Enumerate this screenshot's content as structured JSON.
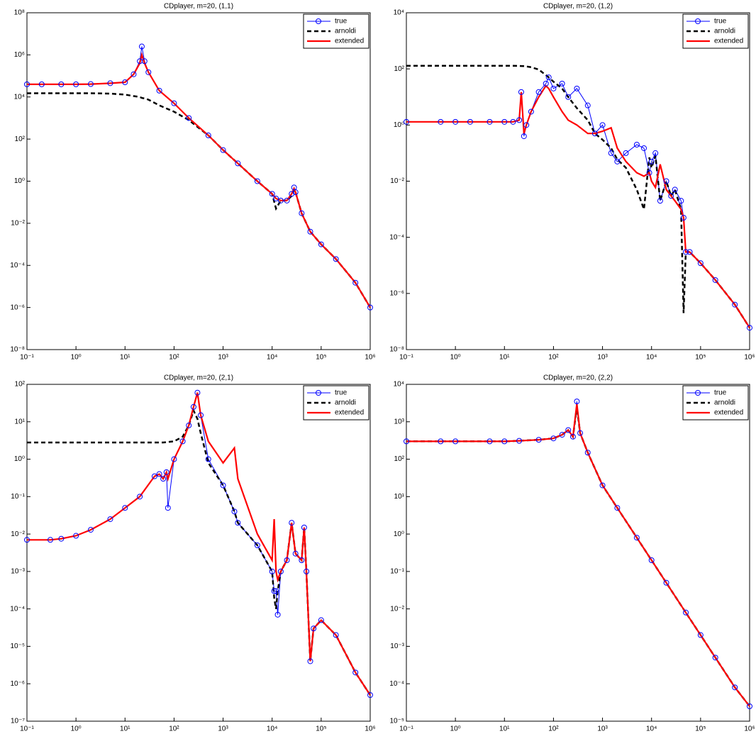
{
  "chart_data": [
    {
      "type": "line",
      "title": "CDplayer, m=20, (1,1)",
      "xscale": "log",
      "yscale": "log",
      "legend": "upper right",
      "x": [
        0.1,
        0.2,
        0.5,
        1,
        2,
        5,
        10,
        15,
        20,
        22,
        25,
        30,
        50,
        100,
        200,
        500,
        1000,
        2000,
        5000,
        10000,
        12000,
        15000,
        20000,
        25000,
        28000,
        30000,
        40000,
        60000,
        100000,
        200000,
        500000,
        1000000
      ],
      "series": [
        {
          "name": "true",
          "color": "#0000ff",
          "style": "solid",
          "marker": "circle",
          "values": [
            40000,
            40000,
            40000,
            40000,
            41000,
            45000,
            50000,
            120000,
            500000,
            2500000,
            500000,
            150000,
            20000,
            5000,
            1000,
            150,
            30,
            7,
            1,
            0.25,
            0.15,
            0.12,
            0.12,
            0.25,
            0.5,
            0.3,
            0.03,
            0.004,
            0.001,
            0.0002,
            1.5e-05,
            1e-06
          ]
        },
        {
          "name": "arnoldi",
          "color": "#000000",
          "style": "dashed",
          "marker": "none",
          "values": [
            15000,
            15000,
            15000,
            15000,
            15000,
            14500,
            13000,
            11000,
            10000,
            9000,
            8500,
            7500,
            4000,
            2000,
            800,
            150,
            30,
            7,
            1,
            0.25,
            0.05,
            0.12,
            0.12,
            0.2,
            0.4,
            0.3,
            0.03,
            0.004,
            0.001,
            0.0002,
            1.5e-05,
            1e-06
          ]
        },
        {
          "name": "extended",
          "color": "#ff0000",
          "style": "solid",
          "marker": "none",
          "values": [
            40000,
            40000,
            40000,
            40000,
            41000,
            45000,
            50000,
            120000,
            400000,
            1000000,
            400000,
            150000,
            20000,
            5000,
            1000,
            150,
            30,
            7,
            1,
            0.25,
            0.15,
            0.12,
            0.12,
            0.25,
            0.45,
            0.3,
            0.03,
            0.004,
            0.001,
            0.0002,
            1.5e-05,
            1e-06
          ]
        }
      ],
      "xlim": [
        0.1,
        1000000
      ],
      "ylim": [
        1e-08,
        100000000
      ],
      "xticks": [
        {
          "value": 0.1,
          "label": "10⁻¹"
        },
        {
          "value": 1,
          "label": "10⁰"
        },
        {
          "value": 10,
          "label": "10¹"
        },
        {
          "value": 100,
          "label": "10²"
        },
        {
          "value": 1000,
          "label": "10³"
        },
        {
          "value": 10000,
          "label": "10⁴"
        },
        {
          "value": 100000,
          "label": "10⁵"
        },
        {
          "value": 1000000,
          "label": "10⁶"
        }
      ],
      "yticks": [
        {
          "value": 1e-08,
          "label": "10⁻⁸"
        },
        {
          "value": 1e-06,
          "label": "10⁻⁶"
        },
        {
          "value": 0.0001,
          "label": "10⁻⁴"
        },
        {
          "value": 0.01,
          "label": "10⁻²"
        },
        {
          "value": 1,
          "label": "10⁰"
        },
        {
          "value": 100,
          "label": "10²"
        },
        {
          "value": 10000,
          "label": "10⁴"
        },
        {
          "value": 1000000,
          "label": "10⁶"
        },
        {
          "value": 100000000,
          "label": "10⁸"
        }
      ]
    },
    {
      "type": "line",
      "title": "CDplayer, m=20, (1,2)",
      "xscale": "log",
      "yscale": "log",
      "legend": "upper right",
      "x": [
        0.1,
        0.5,
        1,
        2,
        5,
        10,
        15,
        20,
        22,
        25,
        28,
        35,
        50,
        70,
        80,
        100,
        150,
        200,
        300,
        500,
        700,
        1000,
        1500,
        2000,
        3000,
        5000,
        7000,
        9000,
        10000,
        12000,
        15000,
        20000,
        25000,
        30000,
        40000,
        45000,
        50000,
        60000,
        100000,
        200000,
        500000,
        1000000
      ],
      "series": [
        {
          "name": "true",
          "color": "#0000ff",
          "style": "solid",
          "marker": "circle",
          "values": [
            1.3,
            1.3,
            1.3,
            1.3,
            1.3,
            1.3,
            1.3,
            1.5,
            15,
            0.4,
            1,
            3,
            15,
            30,
            50,
            20,
            30,
            10,
            20,
            5,
            0.5,
            1,
            0.1,
            0.05,
            0.1,
            0.2,
            0.15,
            0.02,
            0.05,
            0.1,
            0.002,
            0.01,
            0.003,
            0.005,
            0.002,
            0.0005,
            3e-05,
            3e-05,
            1.2e-05,
            3e-06,
            4e-07,
            6e-08
          ]
        },
        {
          "name": "arnoldi",
          "color": "#000000",
          "style": "dashed",
          "marker": "none",
          "values": [
            130,
            130,
            130,
            130,
            130,
            130,
            129,
            128,
            127,
            125,
            122,
            115,
            95,
            60,
            50,
            35,
            20,
            10,
            4,
            1.5,
            0.5,
            0.3,
            0.15,
            0.06,
            0.03,
            0.005,
            0.001,
            0.07,
            0.03,
            0.08,
            0.002,
            0.01,
            0.003,
            0.005,
            0.001,
            2e-07,
            3e-05,
            3e-05,
            1.2e-05,
            3e-06,
            4e-07,
            6e-08
          ]
        },
        {
          "name": "extended",
          "color": "#ff0000",
          "style": "solid",
          "marker": "none",
          "values": [
            1.3,
            1.3,
            1.3,
            1.3,
            1.3,
            1.3,
            1.3,
            1.5,
            15,
            0.5,
            1,
            3,
            10,
            25,
            20,
            10,
            3,
            1.5,
            1,
            0.5,
            0.5,
            0.6,
            0.8,
            0.15,
            0.05,
            0.02,
            0.015,
            0.02,
            0.01,
            0.006,
            0.04,
            0.005,
            0.003,
            0.002,
            0.001,
            0.0005,
            3e-05,
            3e-05,
            1.2e-05,
            3e-06,
            4e-07,
            6e-08
          ]
        }
      ],
      "xlim": [
        0.1,
        1000000
      ],
      "ylim": [
        1e-08,
        10000
      ],
      "xticks": [
        {
          "value": 0.1,
          "label": "10⁻¹"
        },
        {
          "value": 1,
          "label": "10⁰"
        },
        {
          "value": 10,
          "label": "10¹"
        },
        {
          "value": 100,
          "label": "10²"
        },
        {
          "value": 1000,
          "label": "10³"
        },
        {
          "value": 10000,
          "label": "10⁴"
        },
        {
          "value": 100000,
          "label": "10⁵"
        },
        {
          "value": 1000000,
          "label": "10⁶"
        }
      ],
      "yticks": [
        {
          "value": 1e-08,
          "label": "10⁻⁸"
        },
        {
          "value": 1e-06,
          "label": "10⁻⁶"
        },
        {
          "value": 0.0001,
          "label": "10⁻⁴"
        },
        {
          "value": 0.01,
          "label": "10⁻²"
        },
        {
          "value": 1,
          "label": "10⁰"
        },
        {
          "value": 100,
          "label": "10²"
        },
        {
          "value": 10000,
          "label": "10⁴"
        }
      ]
    },
    {
      "type": "line",
      "title": "CDplayer, m=20, (2,1)",
      "xscale": "log",
      "yscale": "log",
      "legend": "upper right",
      "x": [
        0.1,
        0.3,
        0.5,
        1,
        2,
        5,
        10,
        20,
        40,
        50,
        60,
        70,
        75,
        100,
        150,
        200,
        250,
        300,
        350,
        500,
        1000,
        1700,
        2000,
        5000,
        10000,
        11000,
        12000,
        13000,
        15000,
        20000,
        25000,
        30000,
        40000,
        45000,
        50000,
        60000,
        70000,
        100000,
        200000,
        500000,
        1000000
      ],
      "series": [
        {
          "name": "true",
          "color": "#0000ff",
          "style": "solid",
          "marker": "circle",
          "values": [
            0.007,
            0.007,
            0.0075,
            0.009,
            0.013,
            0.025,
            0.05,
            0.1,
            0.35,
            0.4,
            0.3,
            0.45,
            0.05,
            1,
            3,
            8,
            25,
            60,
            15,
            1,
            0.2,
            0.04,
            0.02,
            0.005,
            0.001,
            0.0003,
            0.0003,
            7e-05,
            0.001,
            0.002,
            0.02,
            0.003,
            0.002,
            0.015,
            0.001,
            4e-06,
            3e-05,
            5e-05,
            2e-05,
            2e-06,
            5e-07
          ]
        },
        {
          "name": "arnoldi",
          "color": "#000000",
          "style": "dashed",
          "marker": "none",
          "values": [
            2.8,
            2.8,
            2.8,
            2.8,
            2.8,
            2.8,
            2.8,
            2.8,
            2.8,
            2.8,
            2.8,
            2.85,
            2.9,
            3,
            4,
            8,
            20,
            12,
            5,
            0.8,
            0.2,
            0.04,
            0.02,
            0.005,
            0.001,
            0.0002,
            0.0001,
            0.0003,
            0.001,
            0.002,
            0.02,
            0.003,
            0.002,
            0.015,
            0.001,
            4e-06,
            3e-05,
            5e-05,
            2e-05,
            2e-06,
            5e-07
          ]
        },
        {
          "name": "extended",
          "color": "#ff0000",
          "style": "solid",
          "marker": "none",
          "values": [
            0.007,
            0.007,
            0.0075,
            0.009,
            0.013,
            0.025,
            0.05,
            0.1,
            0.35,
            0.4,
            0.3,
            0.45,
            0.3,
            1,
            3,
            8,
            25,
            60,
            15,
            3,
            0.8,
            2,
            0.3,
            0.01,
            0.002,
            0.025,
            0.001,
            0.0006,
            0.001,
            0.002,
            0.02,
            0.003,
            0.002,
            0.015,
            0.001,
            4e-06,
            3e-05,
            5e-05,
            2e-05,
            2e-06,
            5e-07
          ]
        }
      ],
      "xlim": [
        0.1,
        1000000
      ],
      "ylim": [
        1e-07,
        100
      ],
      "xticks": [
        {
          "value": 0.1,
          "label": "10⁻¹"
        },
        {
          "value": 1,
          "label": "10⁰"
        },
        {
          "value": 10,
          "label": "10¹"
        },
        {
          "value": 100,
          "label": "10²"
        },
        {
          "value": 1000,
          "label": "10³"
        },
        {
          "value": 10000,
          "label": "10⁴"
        },
        {
          "value": 100000,
          "label": "10⁵"
        },
        {
          "value": 1000000,
          "label": "10⁶"
        }
      ],
      "yticks": [
        {
          "value": 1e-07,
          "label": "10⁻⁷"
        },
        {
          "value": 1e-06,
          "label": "10⁻⁶"
        },
        {
          "value": 1e-05,
          "label": "10⁻⁵"
        },
        {
          "value": 0.0001,
          "label": "10⁻⁴"
        },
        {
          "value": 0.001,
          "label": "10⁻³"
        },
        {
          "value": 0.01,
          "label": "10⁻²"
        },
        {
          "value": 0.1,
          "label": "10⁻¹"
        },
        {
          "value": 1,
          "label": "10⁰"
        },
        {
          "value": 10,
          "label": "10¹"
        },
        {
          "value": 100,
          "label": "10²"
        }
      ]
    },
    {
      "type": "line",
      "title": "CDplayer, m=20, (2,2)",
      "xscale": "log",
      "yscale": "log",
      "legend": "upper right",
      "x": [
        0.1,
        0.5,
        1,
        5,
        10,
        20,
        50,
        100,
        150,
        200,
        250,
        300,
        350,
        500,
        1000,
        2000,
        5000,
        10000,
        20000,
        50000,
        100000,
        200000,
        500000,
        1000000
      ],
      "series": [
        {
          "name": "true",
          "color": "#0000ff",
          "style": "solid",
          "marker": "circle",
          "values": [
            300,
            300,
            300,
            300,
            300,
            310,
            330,
            360,
            450,
            600,
            400,
            3500,
            500,
            150,
            20,
            5,
            0.8,
            0.2,
            0.05,
            0.008,
            0.002,
            0.0005,
            8e-05,
            2.5e-05
          ]
        },
        {
          "name": "arnoldi",
          "color": "#000000",
          "style": "dashed",
          "marker": "none",
          "values": [
            300,
            300,
            300,
            300,
            300,
            310,
            330,
            360,
            450,
            600,
            400,
            2500,
            500,
            150,
            20,
            5,
            0.8,
            0.2,
            0.05,
            0.008,
            0.002,
            0.0005,
            8e-05,
            2.5e-05
          ]
        },
        {
          "name": "extended",
          "color": "#ff0000",
          "style": "solid",
          "marker": "none",
          "values": [
            300,
            300,
            300,
            300,
            300,
            310,
            330,
            360,
            450,
            600,
            400,
            3000,
            500,
            150,
            20,
            5,
            0.8,
            0.2,
            0.05,
            0.008,
            0.002,
            0.0005,
            8e-05,
            2.5e-05
          ]
        }
      ],
      "xlim": [
        0.1,
        1000000
      ],
      "ylim": [
        1e-05,
        10000
      ],
      "xticks": [
        {
          "value": 0.1,
          "label": "10⁻¹"
        },
        {
          "value": 1,
          "label": "10⁰"
        },
        {
          "value": 10,
          "label": "10¹"
        },
        {
          "value": 100,
          "label": "10²"
        },
        {
          "value": 1000,
          "label": "10³"
        },
        {
          "value": 10000,
          "label": "10⁴"
        },
        {
          "value": 100000,
          "label": "10⁵"
        },
        {
          "value": 1000000,
          "label": "10⁶"
        }
      ],
      "yticks": [
        {
          "value": 1e-05,
          "label": "10⁻⁵"
        },
        {
          "value": 0.0001,
          "label": "10⁻⁴"
        },
        {
          "value": 0.001,
          "label": "10⁻³"
        },
        {
          "value": 0.01,
          "label": "10⁻²"
        },
        {
          "value": 0.1,
          "label": "10⁻¹"
        },
        {
          "value": 1,
          "label": "10⁰"
        },
        {
          "value": 10,
          "label": "10¹"
        },
        {
          "value": 100,
          "label": "10²"
        },
        {
          "value": 1000,
          "label": "10³"
        },
        {
          "value": 10000,
          "label": "10⁴"
        }
      ]
    }
  ]
}
